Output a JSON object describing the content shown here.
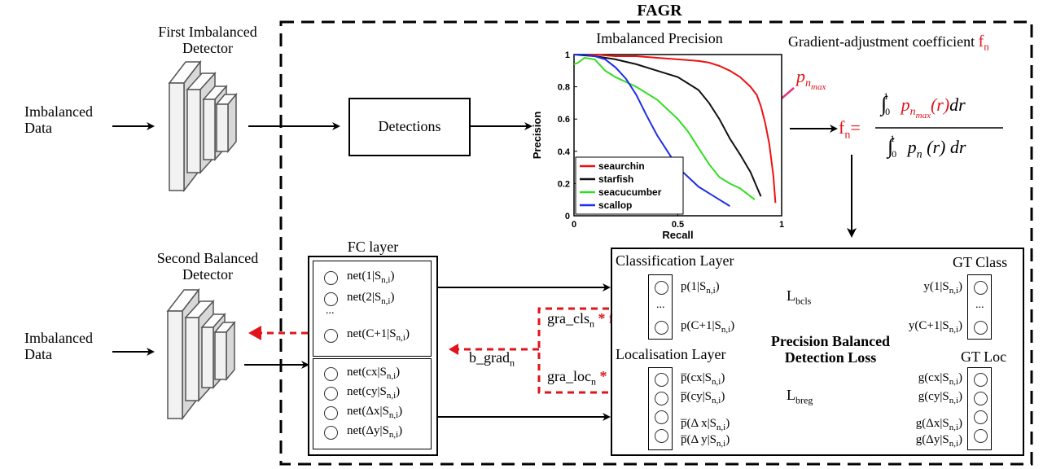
{
  "title": "FAGR",
  "detectors": {
    "first_label": [
      "First Imbalanced",
      "Detector"
    ],
    "second_label": [
      "Second Balanced",
      "Detector"
    ]
  },
  "inputs": {
    "top": [
      "Imbalanced",
      "Data"
    ],
    "bottom": [
      "Imbalanced",
      "Data"
    ]
  },
  "detections_label": "Detections",
  "chart_data": {
    "type": "line",
    "title": "Imbalanced Precision",
    "xlabel": "Recall",
    "ylabel": "Precision",
    "xlim": [
      0,
      1
    ],
    "ylim": [
      0,
      1
    ],
    "xticks": [
      "0",
      "0.5",
      "1"
    ],
    "yticks": [
      "0",
      "0.2",
      "0.4",
      "0.6",
      "0.8",
      "1"
    ],
    "legend_position": "bottom-left",
    "series": [
      {
        "name": "seaurchin",
        "color": "#ee1111",
        "x": [
          0,
          0.05,
          0.1,
          0.2,
          0.3,
          0.4,
          0.5,
          0.6,
          0.65,
          0.7,
          0.75,
          0.8,
          0.85,
          0.88,
          0.9,
          0.92,
          0.94,
          0.96,
          0.97
        ],
        "y": [
          1.0,
          1.0,
          1.0,
          0.99,
          0.99,
          0.98,
          0.97,
          0.96,
          0.95,
          0.93,
          0.9,
          0.86,
          0.8,
          0.75,
          0.68,
          0.58,
          0.45,
          0.25,
          0.08
        ]
      },
      {
        "name": "starfish",
        "color": "#111111",
        "x": [
          0,
          0.1,
          0.2,
          0.3,
          0.4,
          0.5,
          0.55,
          0.6,
          0.65,
          0.7,
          0.75,
          0.8,
          0.85,
          0.88,
          0.9
        ],
        "y": [
          1.0,
          0.99,
          0.97,
          0.94,
          0.9,
          0.86,
          0.82,
          0.78,
          0.7,
          0.6,
          0.48,
          0.38,
          0.27,
          0.18,
          0.12
        ]
      },
      {
        "name": "seacucumber",
        "color": "#33dd22",
        "x": [
          0,
          0.02,
          0.05,
          0.1,
          0.15,
          0.2,
          0.3,
          0.4,
          0.5,
          0.55,
          0.6,
          0.65,
          0.7,
          0.75,
          0.8,
          0.85,
          0.87
        ],
        "y": [
          0.94,
          0.95,
          0.98,
          0.97,
          0.9,
          0.86,
          0.8,
          0.72,
          0.6,
          0.52,
          0.42,
          0.32,
          0.24,
          0.2,
          0.17,
          0.12,
          0.1
        ]
      },
      {
        "name": "scallop",
        "color": "#1f2ee6",
        "x": [
          0,
          0.05,
          0.1,
          0.15,
          0.2,
          0.25,
          0.3,
          0.35,
          0.4,
          0.45,
          0.5,
          0.55,
          0.6,
          0.65,
          0.7,
          0.75
        ],
        "y": [
          1.0,
          1.0,
          0.99,
          0.97,
          0.92,
          0.85,
          0.75,
          0.62,
          0.5,
          0.4,
          0.3,
          0.24,
          0.18,
          0.14,
          0.1,
          0.06
        ]
      }
    ]
  },
  "pnmax": {
    "base": "p",
    "sub": "n",
    "subsub": "max"
  },
  "coef_title": {
    "text": "Gradient-adjustment coefficient ",
    "f": "f",
    "sub": "n"
  },
  "formula": {
    "lhs_f": "f",
    "lhs_sub": "n",
    "equals": "=",
    "int_lower": "0",
    "int_upper": "1",
    "num_p": "p",
    "num_sub": "n",
    "num_subsub": "max",
    "num_rest": "(r)",
    "num_dr": "dr",
    "den_p": "p",
    "den_sub": "n",
    "den_rest": " (r)",
    "den_dr": "dr"
  },
  "fc_layer": {
    "title": "FC layer",
    "cls_rows": [
      {
        "pre": "net(1|S",
        "sub": "n,i",
        "post": ")"
      },
      {
        "pre": "net(2|S",
        "sub": "n,i",
        "post": ")"
      },
      {
        "pre": "net(C+1|S",
        "sub": "n,i",
        "post": ")"
      }
    ],
    "cls_dots": "...",
    "loc_rows": [
      {
        "pre": "net(cx|S",
        "sub": "n,i",
        "post": ")"
      },
      {
        "pre": "net(cy|S",
        "sub": "n,i",
        "post": ")"
      },
      {
        "pre": "net(Δx|S",
        "sub": "n,i",
        "post": ")"
      },
      {
        "pre": "net(Δy|S",
        "sub": "n,i",
        "post": ")"
      }
    ]
  },
  "gradients": {
    "cls": {
      "text": "gra_cls",
      "sub": "n",
      "mult": "* f",
      "msub": "n"
    },
    "loc": {
      "text": "gra_loc",
      "sub": "n",
      "mult": "* f",
      "msub": "n"
    },
    "bgrad": {
      "text": "b_grad",
      "sub": "n"
    }
  },
  "loss_box": {
    "class_title": "Classification Layer",
    "gt_class_title": "GT Class",
    "loc_title": "Localisation Layer",
    "gt_loc_title": "GT Loc",
    "center_title": [
      "Precision Balanced",
      "Detection Loss"
    ],
    "lbcls": {
      "base": "L",
      "sub": "bcls"
    },
    "lbreg": {
      "base": "L",
      "sub": "breg"
    },
    "cls_pred": [
      {
        "pre": "p(1|S",
        "sub": "n,i",
        "post": ")"
      },
      {
        "pre": "p(C+1|S",
        "sub": "n,i",
        "post": ")"
      }
    ],
    "cls_gt": [
      {
        "pre": "y(1|S",
        "sub": "n,i",
        "post": ")"
      },
      {
        "pre": "y(C+1|S",
        "sub": "n,i",
        "post": ")"
      }
    ],
    "dots": "...",
    "loc_pred": [
      {
        "pre": "p̅(cx|S",
        "sub": "n,i",
        "post": ")"
      },
      {
        "pre": "p̅(cy|S",
        "sub": "n,i",
        "post": ")"
      },
      {
        "pre": "p̅(Δ x|S",
        "sub": "n,i",
        "post": ")"
      },
      {
        "pre": "p̅(Δ y|S",
        "sub": "n,i",
        "post": ")"
      }
    ],
    "loc_gt": [
      {
        "pre": "g(cx|S",
        "sub": "n,i",
        "post": ")"
      },
      {
        "pre": "g(cy|S",
        "sub": "n,i",
        "post": ")"
      },
      {
        "pre": "g(Δx|S",
        "sub": "n,i",
        "post": ")"
      },
      {
        "pre": "g(Δy|S",
        "sub": "n,i",
        "post": ")"
      }
    ]
  }
}
